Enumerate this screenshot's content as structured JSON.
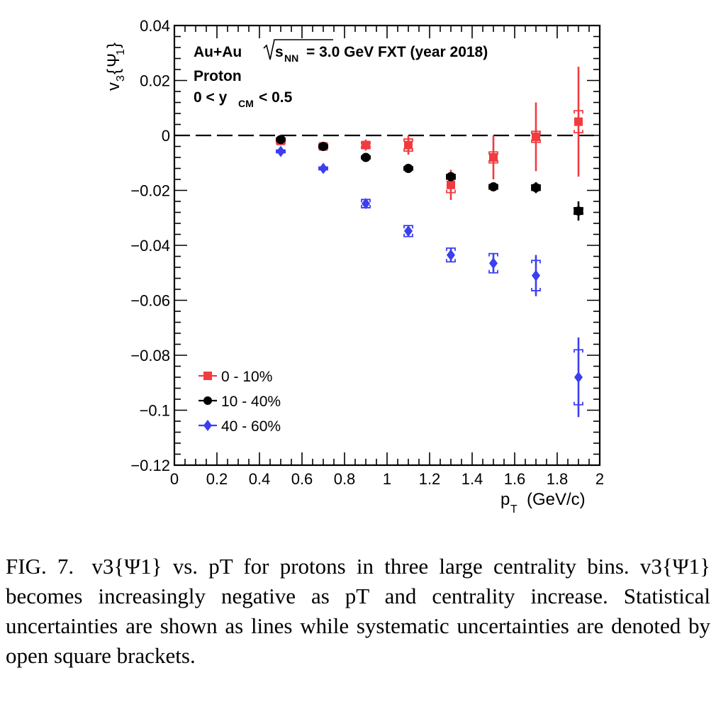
{
  "chart_data": {
    "type": "scatter",
    "annotations": {
      "system": "Au+Au",
      "energy_prefix": "s",
      "energy_sub": "NN",
      "energy_rest": "= 3.0 GeV FXT (year 2018)",
      "particle": "Proton",
      "rapidity_left": "0 < y",
      "rapidity_sub": "CM",
      "rapidity_right": "< 0.5"
    },
    "ylabel": {
      "main": "v",
      "sub": "3",
      "brace_open": "{",
      "psi": "Ψ",
      "psi_sub": "1",
      "brace_close": "}"
    },
    "xlabel": {
      "main": "p",
      "sub": "T",
      "rest": "(GeV/c)"
    },
    "xlim": [
      0,
      2
    ],
    "ylim": [
      -0.12,
      0.04
    ],
    "xticks": [
      {
        "v": 0,
        "label": "0"
      },
      {
        "v": 0.2,
        "label": "0.2"
      },
      {
        "v": 0.4,
        "label": "0.4"
      },
      {
        "v": 0.6,
        "label": "0.6"
      },
      {
        "v": 0.8,
        "label": "0.8"
      },
      {
        "v": 1.0,
        "label": "1"
      },
      {
        "v": 1.2,
        "label": "1.2"
      },
      {
        "v": 1.4,
        "label": "1.4"
      },
      {
        "v": 1.6,
        "label": "1.6"
      },
      {
        "v": 1.8,
        "label": "1.8"
      },
      {
        "v": 2.0,
        "label": "2"
      }
    ],
    "yticks": [
      {
        "v": 0.04,
        "label": "0.04"
      },
      {
        "v": 0.02,
        "label": "0.02"
      },
      {
        "v": 0,
        "label": "0"
      },
      {
        "v": -0.02,
        "label": "−0.02"
      },
      {
        "v": -0.04,
        "label": "−0.04"
      },
      {
        "v": -0.06,
        "label": "−0.06"
      },
      {
        "v": -0.08,
        "label": "−0.08"
      },
      {
        "v": -0.1,
        "label": "−0.1"
      },
      {
        "v": -0.12,
        "label": "−0.12"
      }
    ],
    "reference_line": {
      "y": 0,
      "style": "dashed"
    },
    "legend_placement": "bottom-left",
    "series": [
      {
        "name": "0 - 10%",
        "color": "#f03c40",
        "marker": "square",
        "points": [
          {
            "x": 0.5,
            "y": -0.002,
            "stat": 0.001,
            "sys": 0.001
          },
          {
            "x": 0.7,
            "y": -0.004,
            "stat": 0.0015,
            "sys": 0.001
          },
          {
            "x": 0.9,
            "y": -0.0035,
            "stat": 0.002,
            "sys": 0.0012
          },
          {
            "x": 1.1,
            "y": -0.0035,
            "stat": 0.0035,
            "sys": 0.0022
          },
          {
            "x": 1.3,
            "y": -0.018,
            "stat": 0.0055,
            "sys": 0.0028
          },
          {
            "x": 1.5,
            "y": -0.008,
            "stat": 0.008,
            "sys": 0.002
          },
          {
            "x": 1.7,
            "y": -0.0005,
            "stat": 0.0125,
            "sys": 0.002
          },
          {
            "x": 1.9,
            "y": 0.005,
            "stat": 0.02,
            "sys": 0.004
          }
        ]
      },
      {
        "name": "10 - 40%",
        "color": "#000000",
        "marker": "circle",
        "points": [
          {
            "x": 0.5,
            "y": -0.0015,
            "stat": 0.0005,
            "sys": 0.0005
          },
          {
            "x": 0.7,
            "y": -0.004,
            "stat": 0.0006,
            "sys": 0.0005
          },
          {
            "x": 0.9,
            "y": -0.008,
            "stat": 0.0007,
            "sys": 0.0005
          },
          {
            "x": 1.1,
            "y": -0.012,
            "stat": 0.0008,
            "sys": 0.0006
          },
          {
            "x": 1.3,
            "y": -0.015,
            "stat": 0.001,
            "sys": 0.0008
          },
          {
            "x": 1.5,
            "y": -0.0187,
            "stat": 0.0013,
            "sys": 0.0008
          },
          {
            "x": 1.7,
            "y": -0.019,
            "stat": 0.002,
            "sys": 0.001
          },
          {
            "x": 1.9,
            "y": -0.0275,
            "stat": 0.0035,
            "sys": 0.0012
          }
        ]
      },
      {
        "name": "40 - 60%",
        "color": "#3b3ff0",
        "marker": "diamond",
        "points": [
          {
            "x": 0.5,
            "y": -0.0058,
            "stat": 0.0005,
            "sys": 0.0005
          },
          {
            "x": 0.7,
            "y": -0.012,
            "stat": 0.0006,
            "sys": 0.0005
          },
          {
            "x": 0.9,
            "y": -0.0248,
            "stat": 0.0012,
            "sys": 0.0015
          },
          {
            "x": 1.1,
            "y": -0.0348,
            "stat": 0.0018,
            "sys": 0.002
          },
          {
            "x": 1.3,
            "y": -0.0435,
            "stat": 0.0025,
            "sys": 0.0025
          },
          {
            "x": 1.5,
            "y": -0.0465,
            "stat": 0.0035,
            "sys": 0.0035
          },
          {
            "x": 1.7,
            "y": -0.051,
            "stat": 0.0075,
            "sys": 0.0055
          },
          {
            "x": 1.9,
            "y": -0.088,
            "stat": 0.0145,
            "sys": 0.01
          }
        ]
      }
    ]
  },
  "caption": {
    "label": "FIG. 7.",
    "text": "v3{Ψ1} vs. pT for protons in three large centrality bins. v3{Ψ1} becomes increasingly negative as pT and centrality increase. Statistical uncertainties are shown as lines while systematic uncertainties are denoted by open square brackets."
  }
}
